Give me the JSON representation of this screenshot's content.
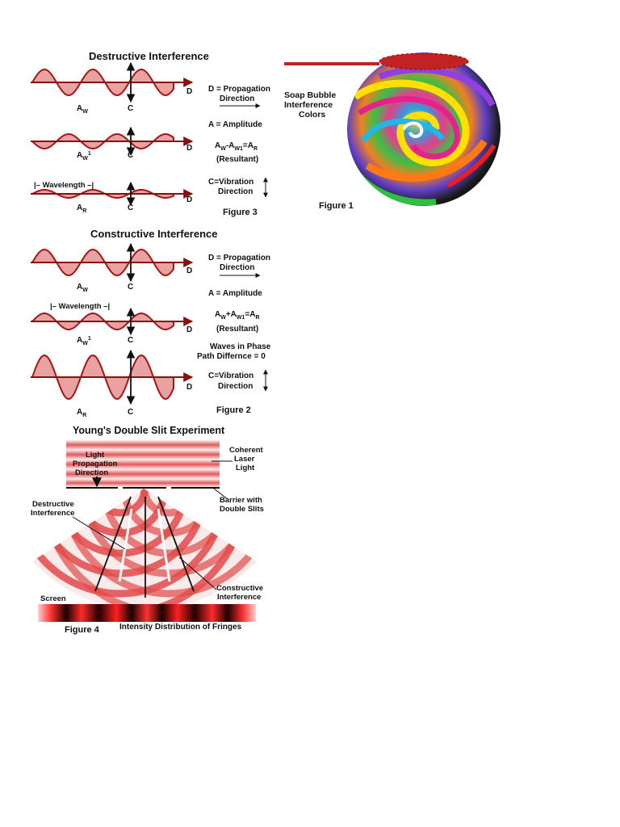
{
  "colors": {
    "wave_fill": "#e8a2a2",
    "wave_stroke": "#a51515",
    "axis": "#8a1010",
    "band_light": "#f7dede",
    "band_mid": "#e04848",
    "fringe_dark": "#1a0000",
    "fringe_bright": "#ff2a2a",
    "bubble_band": "#c22222"
  },
  "destructive": {
    "title": "Destructive Interference",
    "rows": [
      {
        "amp_label": "A",
        "amp_sub": "W",
        "amp_sup": "",
        "c_label": "C",
        "d_label": "D",
        "wavelength_label": ""
      },
      {
        "amp_label": "A",
        "amp_sub": "W",
        "amp_sup": "1",
        "c_label": "C",
        "d_label": "D",
        "wavelength_label": ""
      },
      {
        "amp_label": "A",
        "amp_sub": "R",
        "amp_sup": "",
        "c_label": "C",
        "d_label": "D",
        "wavelength_label": "|– Wavelength –|"
      }
    ],
    "legend": {
      "d_line1": "D = Propagation",
      "d_line2": "Direction",
      "a_line": "A = Amplitude",
      "eq_a": "A",
      "eq_s1": "W",
      "eq_op": "-A",
      "eq_s2": "W1",
      "eq_eq": "=A",
      "eq_s3": "R",
      "resultant": "(Resultant)",
      "c_line1": "C=Vibration",
      "c_line2": "Direction"
    },
    "figure": "Figure 3"
  },
  "constructive": {
    "title": "Constructive Interference",
    "rows": [
      {
        "amp_label": "A",
        "amp_sub": "W",
        "amp_sup": "",
        "c_label": "C",
        "d_label": "D",
        "wavelength_label": ""
      },
      {
        "amp_label": "A",
        "amp_sub": "W",
        "amp_sup": "1",
        "c_label": "C",
        "d_label": "D",
        "wavelength_label": "|– Wavelength –|"
      },
      {
        "amp_label": "A",
        "amp_sub": "R",
        "amp_sup": "",
        "c_label": "C",
        "d_label": "D",
        "wavelength_label": ""
      }
    ],
    "legend": {
      "d_line1": "D = Propagation",
      "d_line2": "Direction",
      "a_line": "A = Amplitude",
      "eq_a": "A",
      "eq_s1": "W",
      "eq_op": "+A",
      "eq_s2": "W1",
      "eq_eq": "=A",
      "eq_s3": "R",
      "resultant": "(Resultant)",
      "phase_line1": "Waves in Phase",
      "phase_line2": "Path Differnce = 0",
      "c_line1": "C=Vibration",
      "c_line2": "Direction"
    },
    "figure": "Figure 2"
  },
  "bubble": {
    "label_line1": "Soap Bubble",
    "label_line2": "Interference",
    "label_line3": "Colors",
    "figure": "Figure 1"
  },
  "young": {
    "title": "Young's Double Slit Experiment",
    "light_line1": "Light",
    "light_line2": "Propagation",
    "light_line3": "Direction",
    "coherent_line1": "Coherent",
    "coherent_line2": "Laser",
    "coherent_line3": "Light",
    "barrier_line1": "Barrier with",
    "barrier_line2": "Double Slits",
    "destructive_line1": "Destructive",
    "destructive_line2": "Interference",
    "constructive_line1": "Constructive",
    "constructive_line2": "Interference",
    "screen": "Screen",
    "figure": "Figure 4",
    "intensity": "Intensity Distribution of Fringes"
  }
}
